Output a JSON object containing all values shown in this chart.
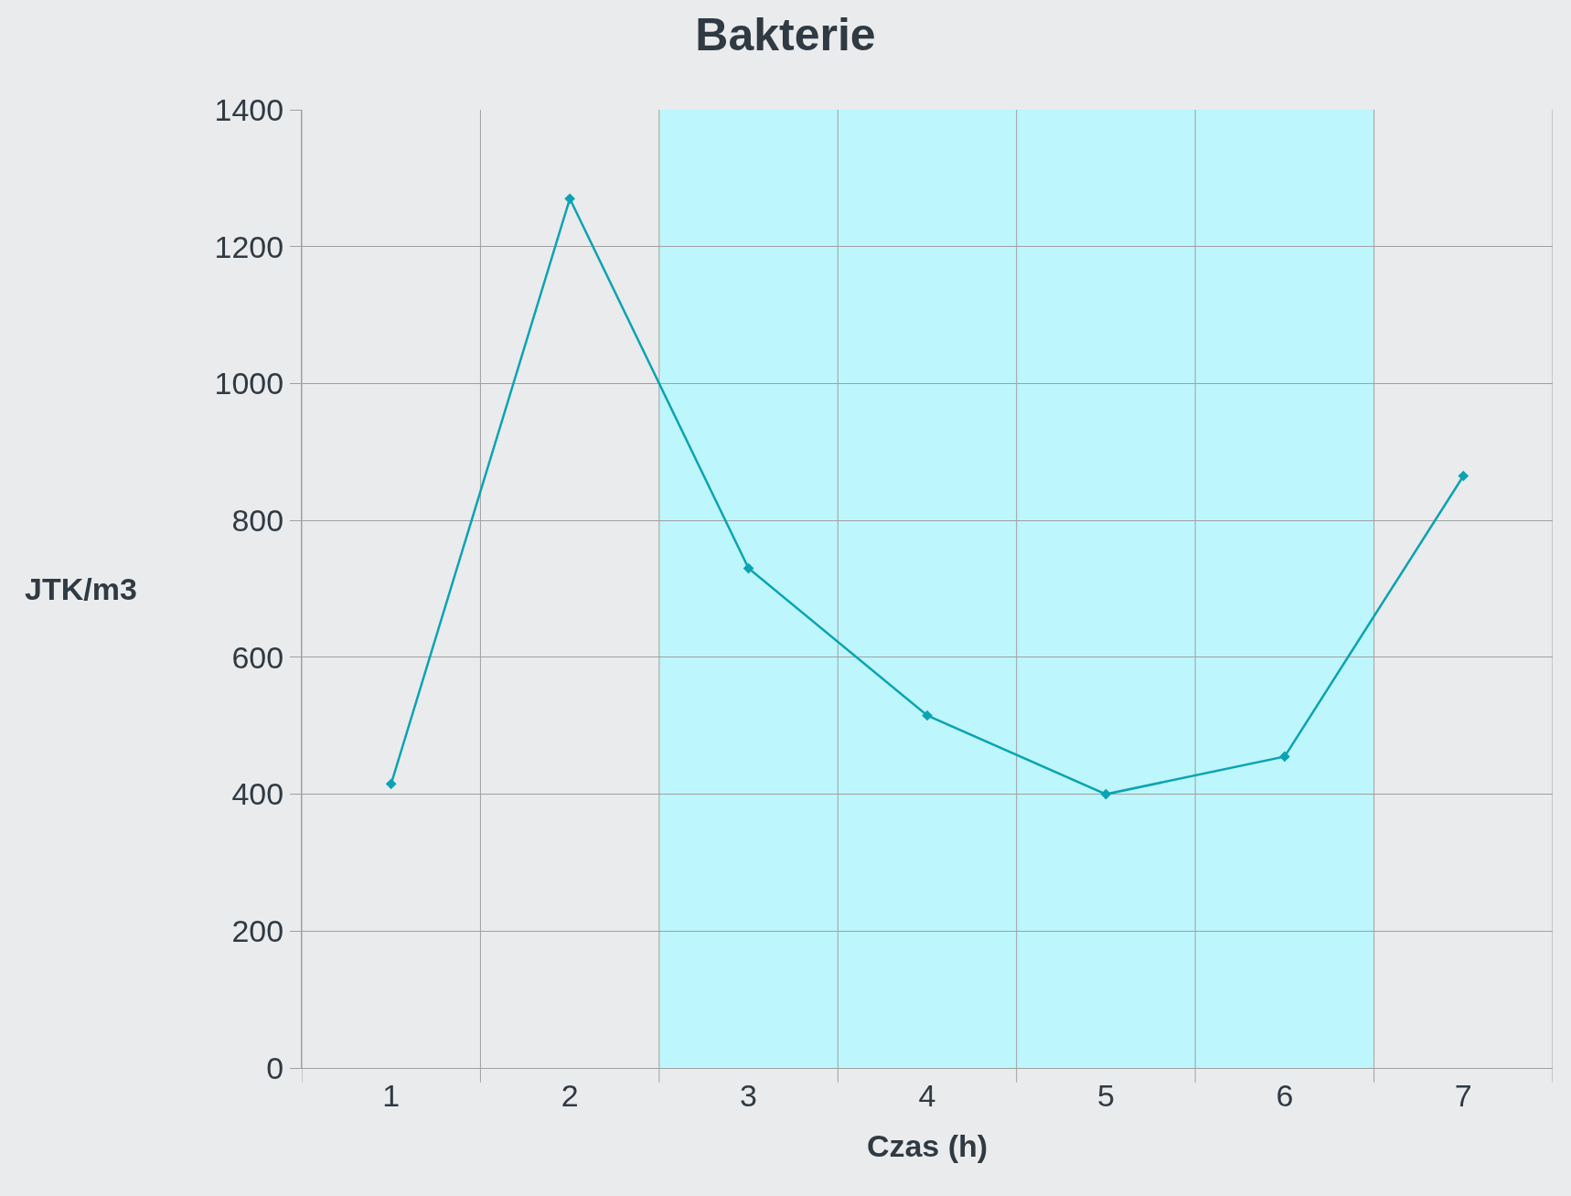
{
  "chart_data": {
    "type": "line",
    "title": "Bakterie",
    "xlabel": "Czas (h)",
    "ylabel": "JTK/m3",
    "x": [
      1,
      2,
      3,
      4,
      5,
      6,
      7
    ],
    "series": [
      {
        "color": "#0ba3b3",
        "values": [
          415,
          1270,
          730,
          515,
          400,
          455,
          865
        ]
      }
    ],
    "xlim": [
      0.5,
      7.5
    ],
    "xticks": [
      {
        "value": 0.5,
        "label": null
      },
      1,
      {
        "value": 1.5,
        "label": null
      },
      2,
      {
        "value": 2.5,
        "label": null
      },
      3,
      {
        "value": 3.5,
        "label": null
      },
      4,
      {
        "value": 4.5,
        "label": null
      },
      5,
      {
        "value": 5.5,
        "label": null
      },
      6,
      {
        "value": 6.5,
        "label": null
      },
      7,
      {
        "value": 7.5,
        "label": null
      }
    ],
    "ylim": [
      0,
      1400
    ],
    "yticks": [
      0,
      200,
      400,
      600,
      800,
      1000,
      1200,
      1400
    ],
    "bands": [
      {
        "axis": "x",
        "from": 2.5,
        "to": 6.5,
        "color": "#bdf6fc"
      }
    ],
    "grid": true,
    "marker": "diamond",
    "line_style": "solid",
    "legend": false
  }
}
